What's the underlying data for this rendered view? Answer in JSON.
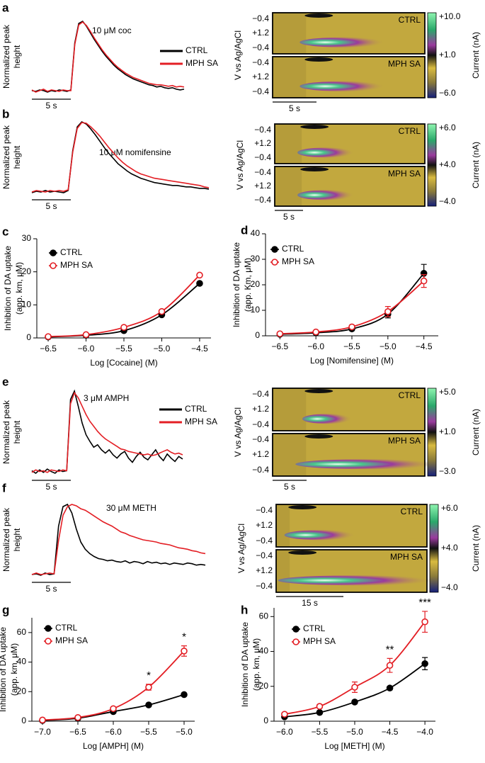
{
  "chart_data": [
    {
      "type": "trace",
      "panel_label": "a",
      "title": "10 μM coc",
      "ylabel": [
        "Normalized peak",
        "height"
      ],
      "scale_bar": "5 s",
      "legend": true,
      "series": [
        {
          "name": "CTRL",
          "color": "#000000",
          "values": [
            0.05,
            0.04,
            0.06,
            0.05,
            0.03,
            0.05,
            0.04,
            0.06,
            0.05,
            0.04,
            0.06,
            0.7,
            0.97,
            1.0,
            0.93,
            0.84,
            0.75,
            0.67,
            0.59,
            0.52,
            0.46,
            0.4,
            0.35,
            0.31,
            0.27,
            0.24,
            0.21,
            0.19,
            0.17,
            0.15,
            0.13,
            0.12,
            0.1,
            0.11,
            0.09,
            0.08,
            0.09,
            0.07,
            0.06,
            0.07
          ]
        },
        {
          "name": "MPH SA",
          "color": "#e31e24",
          "values": [
            0.06,
            0.03,
            0.05,
            0.07,
            0.04,
            0.06,
            0.05,
            0.04,
            0.06,
            0.05,
            0.05,
            0.68,
            0.95,
            0.99,
            0.94,
            0.86,
            0.77,
            0.69,
            0.61,
            0.54,
            0.48,
            0.42,
            0.37,
            0.33,
            0.29,
            0.26,
            0.23,
            0.21,
            0.19,
            0.17,
            0.15,
            0.14,
            0.13,
            0.13,
            0.12,
            0.11,
            0.12,
            0.1,
            0.11,
            0.1
          ]
        }
      ]
    },
    {
      "type": "heatmap",
      "ylabel": "V vs Ag/AgCl",
      "panels": [
        "CTRL",
        "MPH SA"
      ],
      "yticklabels": [
        "−0.4",
        "+1.2",
        "−0.4"
      ],
      "colorbar_labels": [
        "+10.0",
        "+1.0",
        "−6.0"
      ],
      "colorbar_title": "Current (nA)",
      "scale_bar": "5 s"
    },
    {
      "type": "trace",
      "panel_label": "b",
      "title": "10 μM nomifensine",
      "ylabel": [
        "Normalized peak",
        "height"
      ],
      "scale_bar": "5 s",
      "legend": false,
      "series": [
        {
          "color": "#000000",
          "values": [
            0.02,
            0.04,
            0.03,
            0.05,
            0.03,
            0.04,
            0.03,
            0.02,
            0.05,
            0.6,
            0.93,
            1.0,
            0.97,
            0.9,
            0.82,
            0.73,
            0.64,
            0.56,
            0.49,
            0.42,
            0.37,
            0.32,
            0.28,
            0.25,
            0.22,
            0.2,
            0.18,
            0.16,
            0.15,
            0.14,
            0.13,
            0.12,
            0.12,
            0.11,
            0.1,
            0.1,
            0.09,
            0.08,
            0.08,
            0.07
          ]
        },
        {
          "color": "#e31e24",
          "values": [
            0.03,
            0.05,
            0.04,
            0.03,
            0.05,
            0.04,
            0.05,
            0.04,
            0.06,
            0.58,
            0.91,
            0.99,
            0.98,
            0.93,
            0.87,
            0.8,
            0.72,
            0.64,
            0.57,
            0.5,
            0.44,
            0.39,
            0.35,
            0.31,
            0.28,
            0.26,
            0.24,
            0.22,
            0.21,
            0.2,
            0.19,
            0.18,
            0.17,
            0.16,
            0.15,
            0.14,
            0.13,
            0.12,
            0.1,
            0.09
          ]
        }
      ]
    },
    {
      "type": "heatmap",
      "ylabel": "V vs Ag/AgCl",
      "panels": [
        "CTRL",
        "MPH SA"
      ],
      "yticklabels": [
        "−0.4",
        "+1.2",
        "−0.4"
      ],
      "colorbar_labels": [
        "+6.0",
        "+4.0",
        "−4.0"
      ],
      "colorbar_title": "Current (nA)",
      "scale_bar": "5 s"
    },
    {
      "type": "scatter",
      "panel_label": "c",
      "xlabel": "Log [Cocaine] (M)",
      "ylabel": [
        "Inhibition of DA uptake",
        "(app. km, μM)"
      ],
      "x": [
        -6.5,
        -6,
        -5.5,
        -5,
        -4.5
      ],
      "xlim": [
        -6.65,
        -4.35
      ],
      "xticks": [
        {
          "value": -6.5,
          "label": "−6.5"
        },
        {
          "value": -6,
          "label": "−6.0"
        },
        {
          "value": -5.5,
          "label": "−5.5"
        },
        {
          "value": -5,
          "label": "−5.0"
        },
        {
          "value": -4.5,
          "label": "−4.5"
        }
      ],
      "ylim": [
        0,
        30
      ],
      "yticks": [
        0,
        10,
        20,
        30
      ],
      "series": [
        {
          "name": "CTRL",
          "color": "#000000",
          "marker": "filled",
          "values": [
            0.3,
            0.8,
            2.2,
            7,
            16.5
          ]
        },
        {
          "name": "MPH SA",
          "color": "#e31e24",
          "marker": "open",
          "values": [
            0.4,
            1,
            3.2,
            8,
            19
          ]
        }
      ]
    },
    {
      "type": "scatter",
      "panel_label": "d",
      "xlabel": "Log [Nomifensine] (M)",
      "ylabel": [
        "Inhibition of DA uptake",
        "(app. Km, μM)"
      ],
      "x": [
        -6.5,
        -6,
        -5.5,
        -5,
        -4.5
      ],
      "xlim": [
        -6.7,
        -4.3
      ],
      "xticks": [
        {
          "value": -6.5,
          "label": "−6.5"
        },
        {
          "value": -6,
          "label": "−6.0"
        },
        {
          "value": -5.5,
          "label": "−5.5"
        },
        {
          "value": -5,
          "label": "−5.0"
        },
        {
          "value": -4.5,
          "label": "−4.5"
        }
      ],
      "ylim": [
        0,
        40
      ],
      "yticks": [
        0,
        10,
        20,
        30,
        40
      ],
      "series": [
        {
          "name": "CTRL",
          "color": "#000000",
          "marker": "filled",
          "values": [
            0.6,
            1.2,
            2.7,
            8.5,
            24.5
          ],
          "errors": [
            0.3,
            0.3,
            0.5,
            1.5,
            3.5
          ]
        },
        {
          "name": "MPH SA",
          "color": "#e31e24",
          "marker": "open",
          "values": [
            0.8,
            1.5,
            3.5,
            9.5,
            21.5
          ],
          "errors": [
            0.3,
            0.3,
            0.6,
            2,
            2.5
          ]
        }
      ]
    },
    {
      "type": "trace",
      "panel_label": "e",
      "title": "3 μM AMPH",
      "ylabel": [
        "Normalized peak",
        "height"
      ],
      "scale_bar": "5 s",
      "legend": true,
      "series": [
        {
          "name": "CTRL",
          "color": "#000000",
          "values": [
            0.05,
            0.02,
            0.06,
            0.03,
            0.07,
            0.04,
            0.02,
            0.06,
            0.04,
            0.05,
            0.9,
            1.0,
            0.82,
            0.62,
            0.48,
            0.4,
            0.33,
            0.36,
            0.3,
            0.26,
            0.3,
            0.24,
            0.2,
            0.25,
            0.28,
            0.2,
            0.15,
            0.22,
            0.27,
            0.21,
            0.18,
            0.24,
            0.3,
            0.22,
            0.17,
            0.25,
            0.2,
            0.16,
            0.22,
            0.19
          ]
        },
        {
          "name": "MPH SA",
          "color": "#e31e24",
          "values": [
            0.03,
            0.06,
            0.04,
            0.05,
            0.03,
            0.06,
            0.05,
            0.04,
            0.06,
            0.05,
            0.85,
            0.98,
            0.92,
            0.82,
            0.72,
            0.64,
            0.58,
            0.52,
            0.47,
            0.43,
            0.4,
            0.37,
            0.34,
            0.31,
            0.3,
            0.28,
            0.27,
            0.26,
            0.25,
            0.24,
            0.25,
            0.23,
            0.24,
            0.26,
            0.28,
            0.3,
            0.27,
            0.25,
            0.26,
            0.24
          ]
        }
      ]
    },
    {
      "type": "heatmap",
      "ylabel": "V vs Ag/AgCl",
      "panels": [
        "CTRL",
        "MPH SA"
      ],
      "yticklabels": [
        "−0.4",
        "+1.2",
        "−0.4"
      ],
      "colorbar_labels": [
        "+5.0",
        "+1.0",
        "−3.0"
      ],
      "colorbar_title": "Current (nA)",
      "scale_bar": "5 s"
    },
    {
      "type": "trace",
      "panel_label": "f",
      "title": "30 μM METH",
      "ylabel": [
        "Normalized peak",
        "height"
      ],
      "scale_bar": "5 s",
      "legend": false,
      "series": [
        {
          "color": "#000000",
          "values": [
            0.03,
            0.04,
            0.02,
            0.05,
            0.03,
            0.04,
            0.7,
            0.97,
            1.0,
            0.88,
            0.66,
            0.48,
            0.38,
            0.32,
            0.28,
            0.25,
            0.24,
            0.22,
            0.23,
            0.21,
            0.2,
            0.22,
            0.19,
            0.21,
            0.2,
            0.18,
            0.21,
            0.19,
            0.2,
            0.18,
            0.19,
            0.17,
            0.19,
            0.18,
            0.17,
            0.19,
            0.18,
            0.16,
            0.17,
            0.16
          ]
        },
        {
          "color": "#e31e24",
          "values": [
            0.03,
            0.05,
            0.03,
            0.04,
            0.05,
            0.04,
            0.5,
            0.85,
            0.97,
            1.0,
            0.98,
            0.94,
            0.92,
            0.88,
            0.84,
            0.8,
            0.76,
            0.73,
            0.7,
            0.66,
            0.62,
            0.6,
            0.57,
            0.55,
            0.53,
            0.51,
            0.5,
            0.49,
            0.48,
            0.46,
            0.45,
            0.44,
            0.42,
            0.4,
            0.39,
            0.38,
            0.36,
            0.35,
            0.33,
            0.32
          ]
        }
      ]
    },
    {
      "type": "heatmap",
      "ylabel": "V vs Ag/AgCl",
      "panels": [
        "CTRL",
        "MPH SA"
      ],
      "yticklabels": [
        "−0.4",
        "+1.2",
        "−0.4"
      ],
      "colorbar_labels": [
        "+6.0",
        "+4.0",
        "−4.0"
      ],
      "colorbar_title": "Current (nA)",
      "scale_bar": "15 s"
    },
    {
      "type": "scatter",
      "panel_label": "g",
      "xlabel": "Log [AMPH] (M)",
      "ylabel": [
        "Inhibition of DA uptake",
        "(app. km, μM)"
      ],
      "x": [
        -7,
        -6.5,
        -6,
        -5.5,
        -5
      ],
      "xlim": [
        -7.15,
        -4.85
      ],
      "xticks": [
        {
          "value": -7,
          "label": "−7.0"
        },
        {
          "value": -6.5,
          "label": "−6.5"
        },
        {
          "value": -6,
          "label": "−6.0"
        },
        {
          "value": -5.5,
          "label": "−5.5"
        },
        {
          "value": -5,
          "label": "−5.0"
        }
      ],
      "ylim": [
        0,
        70
      ],
      "yticks": [
        0,
        20,
        40,
        60
      ],
      "series": [
        {
          "name": "CTRL",
          "color": "#000000",
          "marker": "filled",
          "values": [
            0.5,
            2,
            6.5,
            11,
            18
          ],
          "errors": [
            0.2,
            0.3,
            0.5,
            0.8,
            1
          ]
        },
        {
          "name": "MPH SA",
          "color": "#e31e24",
          "marker": "open",
          "values": [
            0.8,
            2.5,
            8.5,
            23,
            47.5
          ],
          "errors": [
            0.3,
            0.5,
            1,
            2,
            3.5
          ]
        }
      ],
      "significance": [
        null,
        null,
        null,
        "*",
        "*"
      ]
    },
    {
      "type": "scatter",
      "panel_label": "h",
      "xlabel": "Log [METH] (M)",
      "ylabel": [
        "Inhibition of DA uptake",
        "(app. km, μM)"
      ],
      "x": [
        -6,
        -5.5,
        -5,
        -4.5,
        -4
      ],
      "xlim": [
        -6.15,
        -3.85
      ],
      "xticks": [
        {
          "value": -6,
          "label": "−6.0"
        },
        {
          "value": -5.5,
          "label": "−5.5"
        },
        {
          "value": -5,
          "label": "−5.0"
        },
        {
          "value": -4.5,
          "label": "−4.5"
        },
        {
          "value": -4,
          "label": "−4.0"
        }
      ],
      "ylim": [
        0,
        65
      ],
      "yticks": [
        0,
        20,
        40,
        60
      ],
      "series": [
        {
          "name": "CTRL",
          "color": "#000000",
          "marker": "filled",
          "values": [
            2.5,
            5,
            11,
            19,
            33
          ],
          "errors": [
            0.5,
            0.5,
            1,
            1,
            3.5
          ]
        },
        {
          "name": "MPH SA",
          "color": "#e31e24",
          "marker": "open",
          "values": [
            4,
            8.5,
            19.5,
            32,
            57
          ],
          "errors": [
            0.8,
            1,
            3,
            4,
            6
          ]
        }
      ],
      "significance": [
        null,
        null,
        null,
        "**",
        "***"
      ]
    }
  ]
}
